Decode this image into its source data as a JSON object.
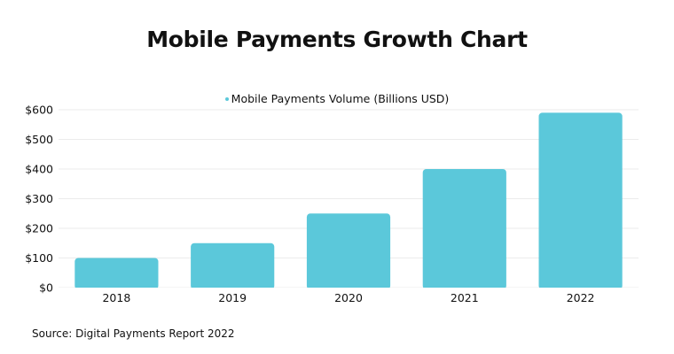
{
  "chart_data": {
    "type": "bar",
    "title": "Mobile Payments Growth Chart",
    "categories": [
      "2018",
      "2019",
      "2020",
      "2021",
      "2022"
    ],
    "series": [
      {
        "name": "Mobile Payments Volume (Billions USD)",
        "values": [
          100,
          150,
          250,
          400,
          590
        ],
        "color": "#5bc8da"
      }
    ],
    "ylim": [
      0,
      600
    ],
    "yticks": [
      0,
      100,
      200,
      300,
      400,
      500,
      600
    ],
    "ytick_labels": [
      "$0",
      "$100",
      "$200",
      "$300",
      "$400",
      "$500",
      "$600"
    ],
    "xlabel": "",
    "ylabel": "",
    "grid": true,
    "gridColor": "#ebebeb",
    "legend": "top-center",
    "source": "Source: Digital Payments Report 2022"
  }
}
